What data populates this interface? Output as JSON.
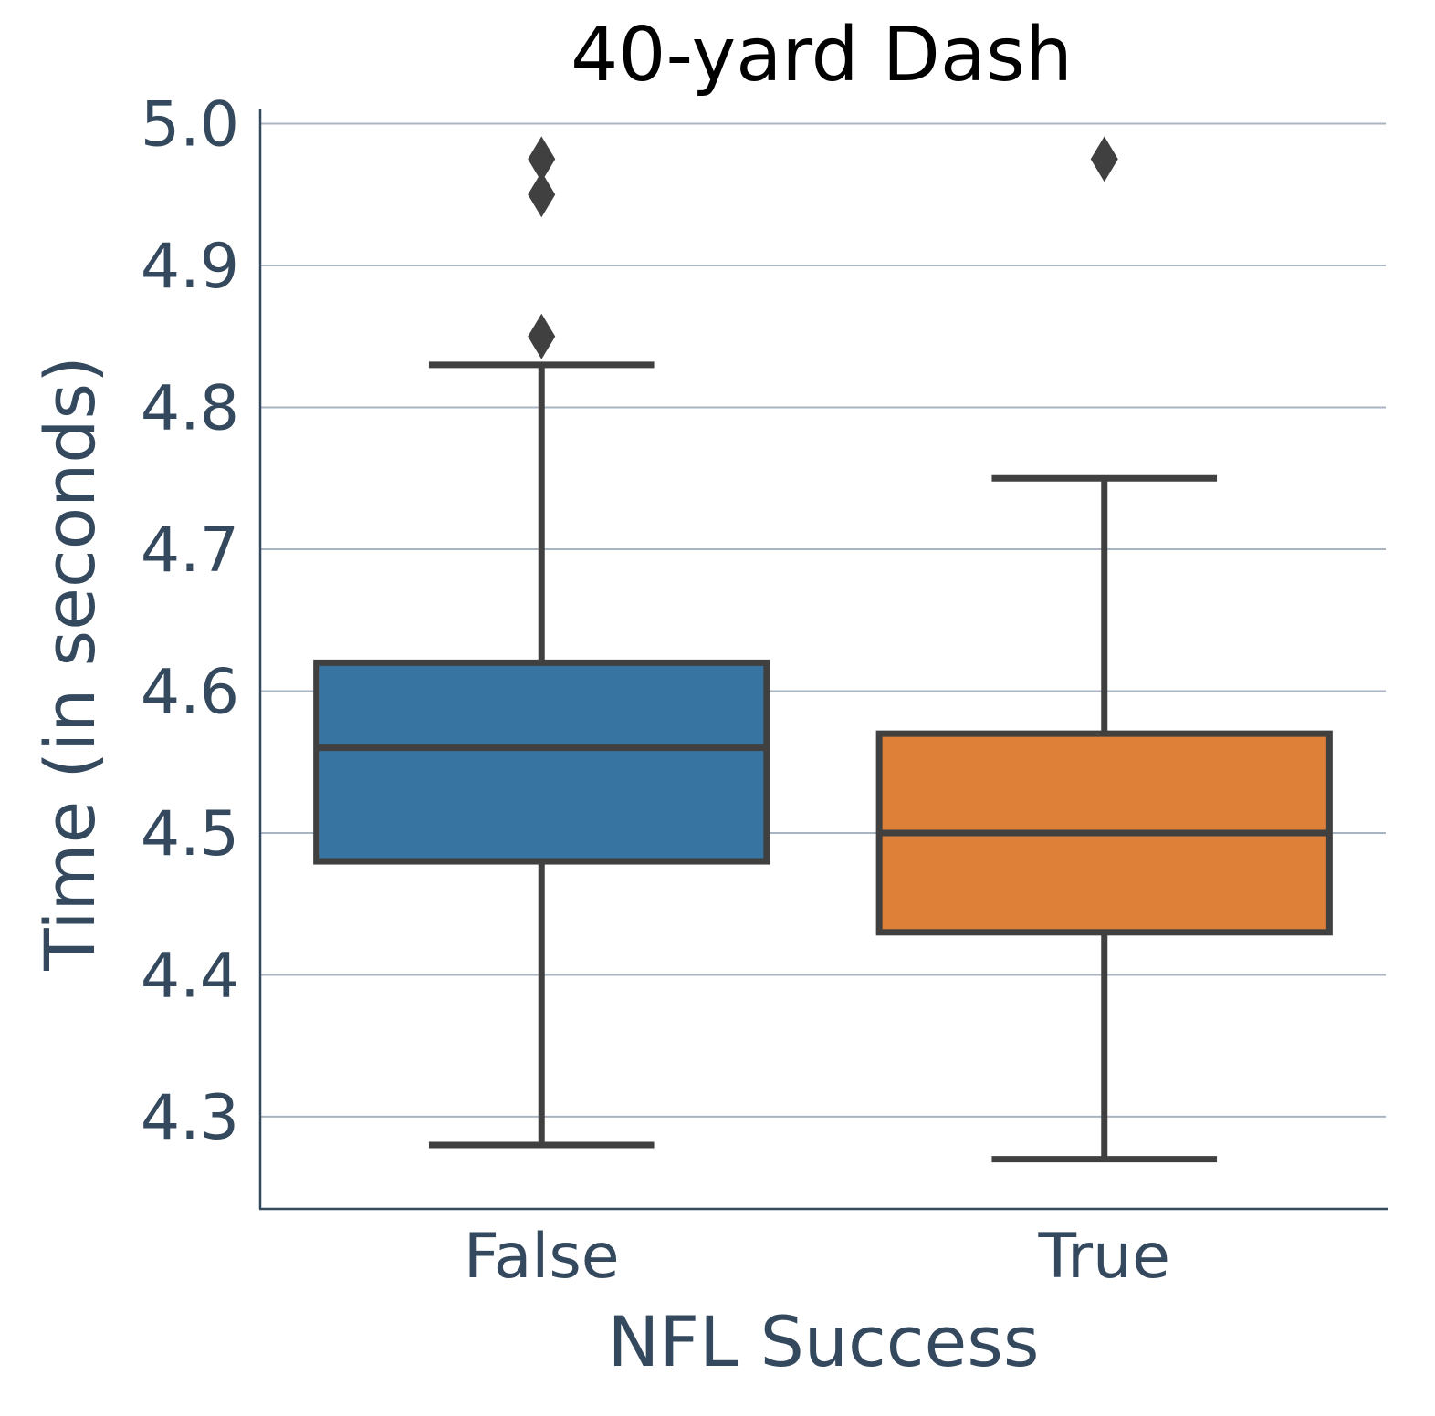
{
  "chart_data": {
    "type": "box",
    "title": "40-yard Dash",
    "xlabel": "NFL Success",
    "ylabel": "Time (in seconds)",
    "categories": [
      "False",
      "True"
    ],
    "ylim": [
      4.235,
      5.01
    ],
    "yticks": [
      4.3,
      4.4,
      4.5,
      4.6,
      4.7,
      4.8,
      4.9,
      5.0
    ],
    "ytick_labels": [
      "4.3",
      "4.4",
      "4.5",
      "4.6",
      "4.7",
      "4.8",
      "4.9",
      "5.0"
    ],
    "grid": "horizontal",
    "boxes": [
      {
        "category": "False",
        "color": "#3774a1",
        "whisker_low": 4.28,
        "q1": 4.48,
        "median": 4.56,
        "q3": 4.62,
        "whisker_high": 4.83,
        "outliers": [
          4.85,
          4.95,
          4.975
        ]
      },
      {
        "category": "True",
        "color": "#de8037",
        "whisker_low": 4.27,
        "q1": 4.43,
        "median": 4.5,
        "q3": 4.57,
        "whisker_high": 4.75,
        "outliers": [
          4.975
        ]
      }
    ]
  }
}
